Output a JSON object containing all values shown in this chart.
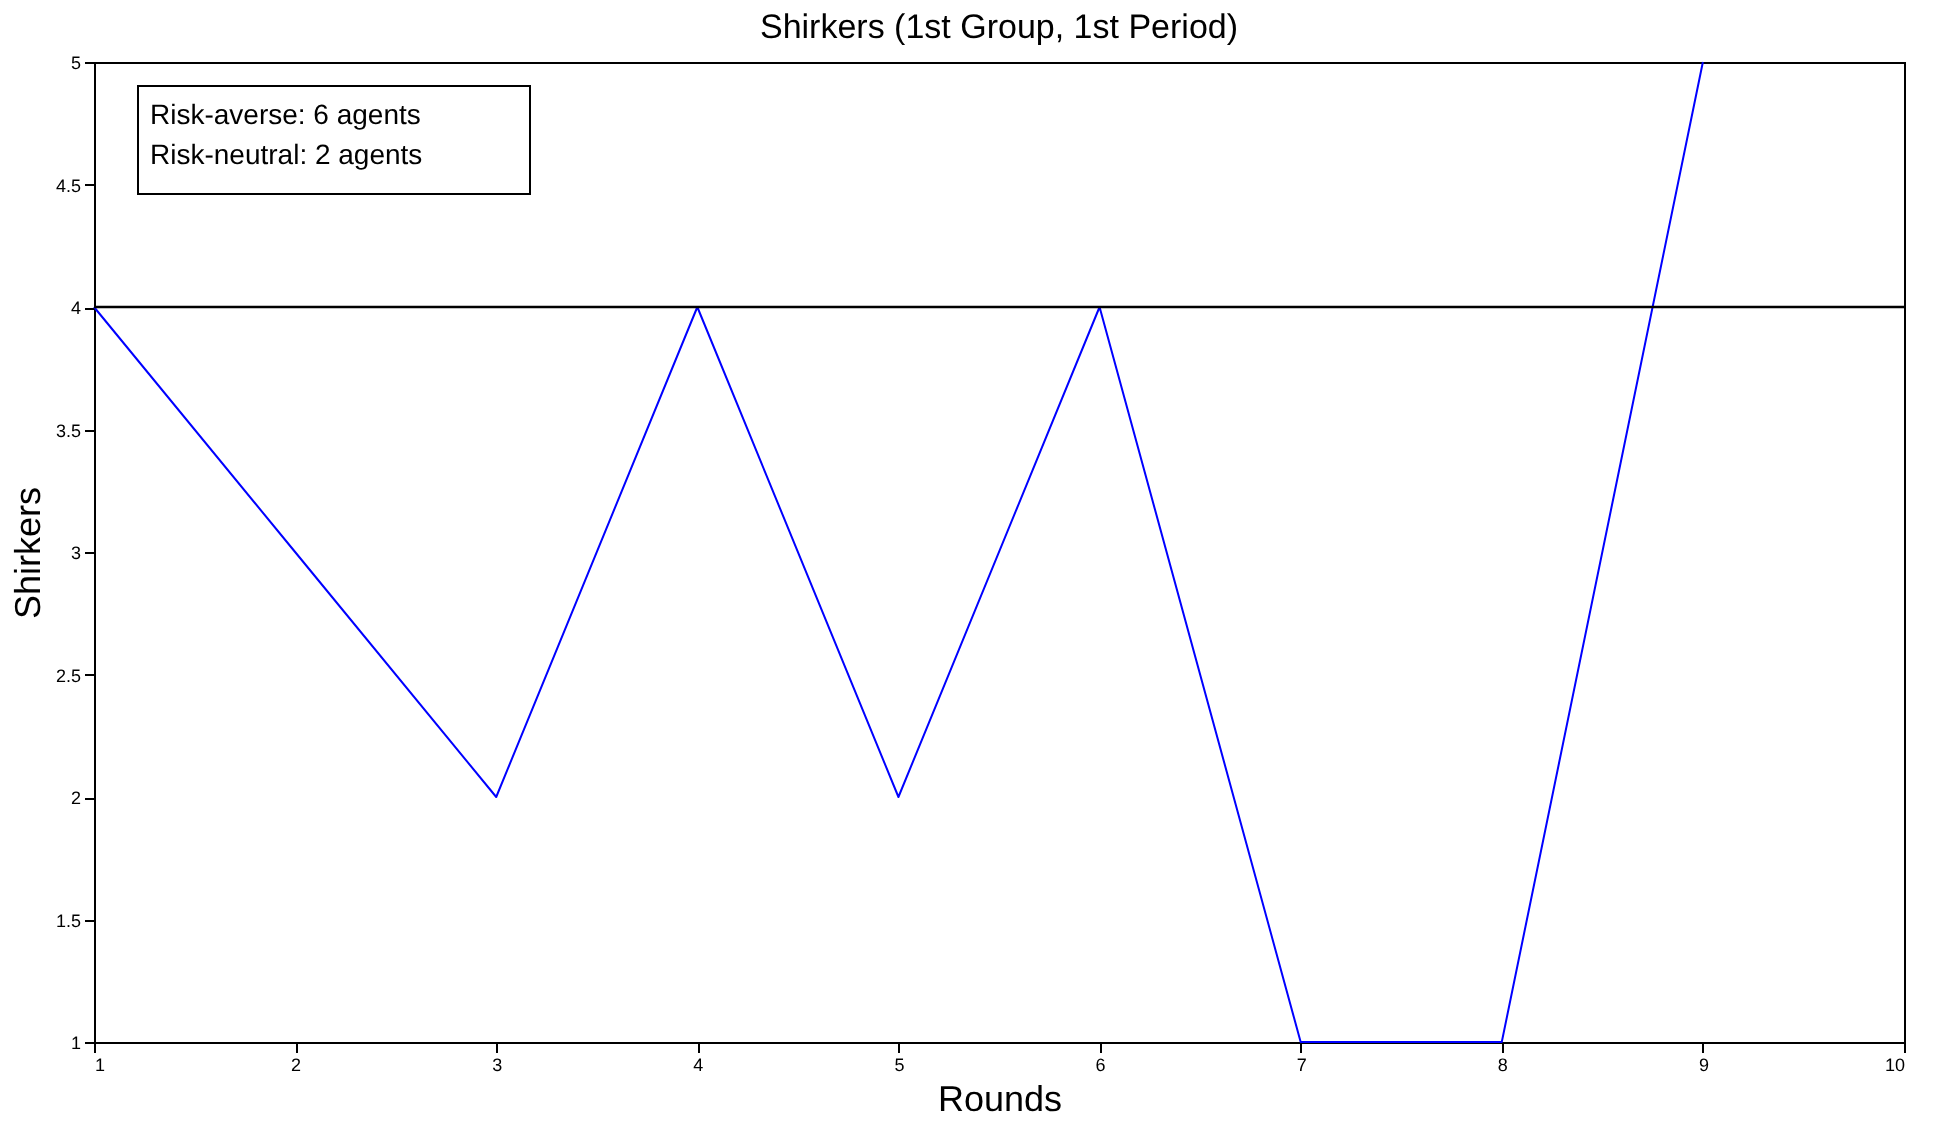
{
  "chart_data": {
    "type": "line",
    "title": "Shirkers (1st Group, 1st Period)",
    "xlabel": "Rounds",
    "ylabel": "Shirkers",
    "x": [
      1,
      2,
      3,
      4,
      5,
      6,
      7,
      8,
      9
    ],
    "series": [
      {
        "color": "#0000ff",
        "values": [
          4,
          3,
          2,
          4,
          2,
          4,
          1,
          1,
          5
        ]
      }
    ],
    "xlim": [
      1,
      10
    ],
    "xticks": [
      1,
      2,
      3,
      4,
      5,
      6,
      7,
      8,
      9,
      10
    ],
    "ylim": [
      1,
      5
    ],
    "yticks": [
      1,
      1.5,
      2,
      2.5,
      3,
      3.5,
      4,
      4.5,
      5
    ],
    "ref_lines": [
      {
        "axis": "y",
        "value": 4,
        "color": "#000000"
      }
    ],
    "annotations": [
      "Risk-averse: 6 agents",
      "Risk-neutral: 2 agents"
    ],
    "grid": false,
    "legend": false,
    "marker": "none",
    "line_style": "solid"
  }
}
